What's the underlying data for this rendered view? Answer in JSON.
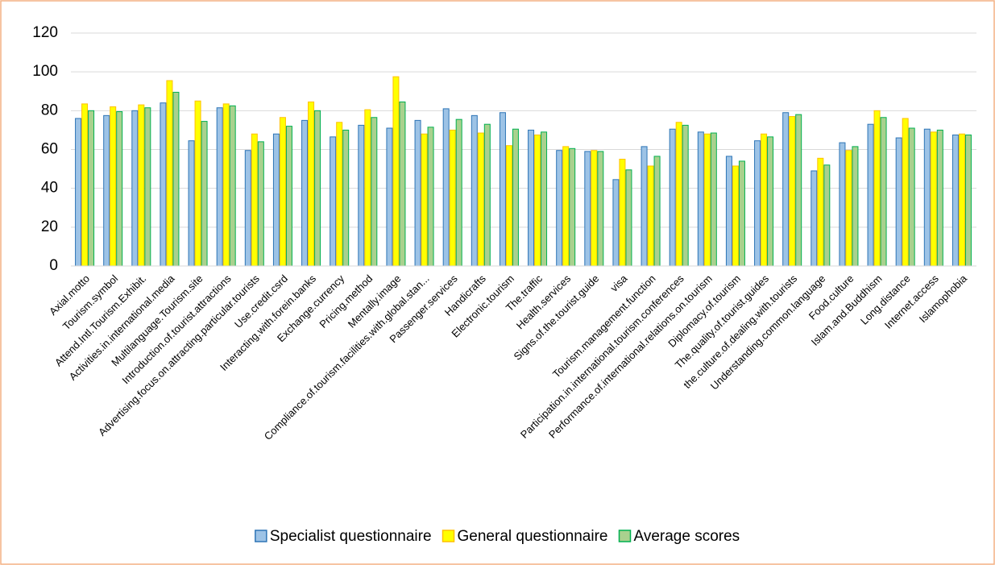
{
  "chart_data": {
    "type": "bar",
    "categories": [
      "Axial.motto",
      "Tourism.symbol",
      "Attend.Intl.Tourism.Exhibit.",
      "Activities.in.international.media",
      "Multilanguage.Tourism.site",
      "Introduction.of.tourist.attractions",
      "Advertising.focus.on.attracting.particular.tourists",
      "Use.credit.csrd",
      "Interacting.with.forein.banks",
      "Exchange.currency",
      "Pricing.method",
      "Mentally.image",
      "Compliance.of.tourism.facilities.with.global.stan...",
      "Passenger.services",
      "Handicrafts",
      "Electronic.tourism",
      "The.traffic",
      "Health.services",
      "Signs.of.the.tourist.guide",
      "visa",
      "Tourism.management.function",
      "Participation.in.international.tourism.conferences",
      "Performance.of.international.relations.on.tourism",
      "Diplomacy.of.tourism",
      "The.quality.of.tourist.guides",
      "the.culture.of.dealing.with.tourists",
      "Understanding.common.language",
      "Food.culture",
      "Islam.and.Buddhism",
      "Long.distance",
      "Internet.access",
      "Islamophobia"
    ],
    "series": [
      {
        "name": "Specialist questionnaire",
        "color": "#9dc3e6",
        "edgecolor": "#2e75b6",
        "values": [
          76,
          77.5,
          80,
          84,
          64.5,
          81.5,
          59.5,
          68,
          75,
          66.5,
          72.5,
          71,
          75,
          81,
          77.5,
          79,
          70,
          59.5,
          59,
          44.5,
          61.5,
          70.5,
          69,
          56.5,
          64.5,
          79,
          49,
          63.5,
          73,
          66,
          70.5,
          67.5
        ]
      },
      {
        "name": "General questionnaire",
        "color": "#ffff00",
        "edgecolor": "#ffc000",
        "values": [
          83.5,
          82,
          83,
          95.5,
          85,
          83.5,
          68,
          76.5,
          84.5,
          74,
          80.5,
          97.5,
          68,
          70,
          68.5,
          62,
          67.5,
          61.5,
          59.5,
          55,
          51.5,
          74,
          68,
          51.5,
          68,
          77,
          55.5,
          59.5,
          80,
          76,
          69,
          68
        ]
      },
      {
        "name": "Average scores",
        "color": "#a9d18e",
        "edgecolor": "#00b050",
        "values": [
          80,
          79.5,
          81.5,
          89.5,
          74.5,
          82.5,
          64,
          72,
          80,
          70,
          76.5,
          84.5,
          71.5,
          75.5,
          73,
          70.5,
          69,
          60.5,
          59,
          49.5,
          56.5,
          72.5,
          68.5,
          54,
          66.5,
          78,
          52,
          61.5,
          76.5,
          71,
          70,
          67.5
        ]
      }
    ],
    "ylim": [
      0,
      120
    ],
    "yticks": [
      0,
      20,
      40,
      60,
      80,
      100,
      120
    ],
    "grid": true,
    "legend": "bottom"
  }
}
